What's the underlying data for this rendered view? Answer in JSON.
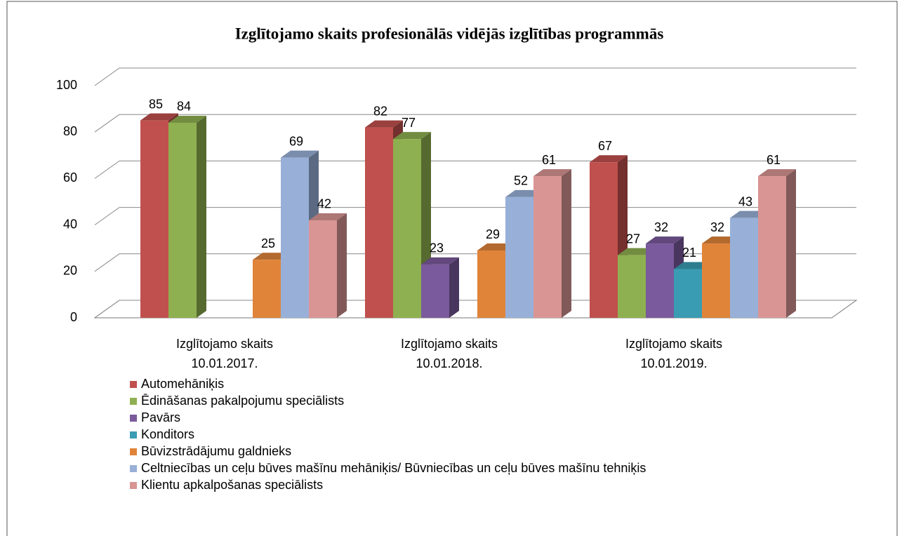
{
  "chart_data": {
    "type": "bar3d",
    "title": "Izglītojamo skaits profesionālās vidējās izglītības programmās",
    "categories": [
      "Izglītojamo skaits\n10.01.2017.",
      "Izglītojamo skaits\n10.01.2018.",
      "Izglītojamo skaits\n10.01.2019."
    ],
    "series": [
      {
        "name": "Automehāniķis",
        "color": "#c0504d",
        "values": [
          85,
          82,
          67
        ]
      },
      {
        "name": "Ēdināšanas pakalpojumu speciālists",
        "color": "#8fb050",
        "values": [
          84,
          77,
          27
        ]
      },
      {
        "name": "Pavārs",
        "color": "#7a5a9c",
        "values": [
          null,
          23,
          32
        ]
      },
      {
        "name": "Konditors",
        "color": "#3a9cb3",
        "values": [
          null,
          null,
          21
        ]
      },
      {
        "name": "Būvizstrādājumu galdnieks",
        "color": "#e0843a",
        "values": [
          25,
          29,
          32
        ]
      },
      {
        "name": "Celtniecības un ceļu būves mašīnu mehāniķis/ Būvniecības un ceļu būves mašīnu tehniķis",
        "color": "#98b0d8",
        "values": [
          69,
          52,
          43
        ]
      },
      {
        "name": "Klientu apkalpošanas speciālists",
        "color": "#d89594",
        "values": [
          42,
          61,
          61
        ]
      }
    ],
    "ylim": [
      0,
      100
    ],
    "yticks": [
      0,
      20,
      40,
      60,
      80,
      100
    ],
    "grid": true,
    "legend": "bottom"
  }
}
